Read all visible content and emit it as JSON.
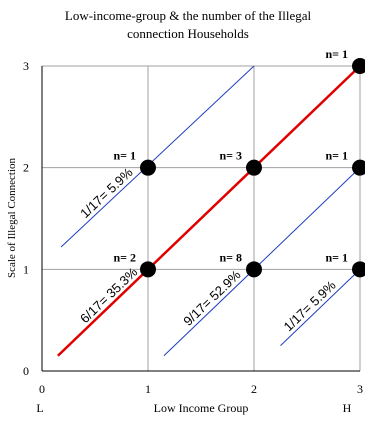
{
  "chart_data": {
    "type": "scatter",
    "title": "Low-income-group & the number of the Illegal connection Households",
    "title_lines": [
      "Low-income-group & the number of the Illegal",
      "connection Households"
    ],
    "xlabel": "Low Income Group",
    "ylabel": "Scale of Illegal Connection",
    "xlim": [
      0,
      3
    ],
    "ylim": [
      0,
      3
    ],
    "x_ticks": [
      "0",
      "1",
      "2",
      "3"
    ],
    "y_ticks": [
      "0",
      "1",
      "2",
      "3"
    ],
    "x_end_labels": {
      "low": "L",
      "high": "H"
    },
    "grid": true,
    "points": [
      {
        "x": 1,
        "y": 1,
        "label": "n= 2"
      },
      {
        "x": 1,
        "y": 2,
        "label": "n= 1"
      },
      {
        "x": 2,
        "y": 1,
        "label": "n= 8"
      },
      {
        "x": 2,
        "y": 2,
        "label": "n= 3"
      },
      {
        "x": 3,
        "y": 1,
        "label": "n= 1"
      },
      {
        "x": 3,
        "y": 2,
        "label": "n= 1"
      },
      {
        "x": 3,
        "y": 3,
        "label": "n= 1"
      }
    ],
    "diagonals": [
      {
        "from": [
          0.18,
          1.22
        ],
        "to": [
          2,
          3
        ],
        "color": "#1f3fbf",
        "label": "1/17= 5.9%"
      },
      {
        "from": [
          0.15,
          0.15
        ],
        "to": [
          3,
          3
        ],
        "color": "#e00000",
        "label": "6/17= 35.3%"
      },
      {
        "from": [
          1.15,
          0.15
        ],
        "to": [
          3,
          2
        ],
        "color": "#1f3fbf",
        "label": "9/17= 52.9%"
      },
      {
        "from": [
          2.25,
          0.25
        ],
        "to": [
          3,
          1
        ],
        "color": "#1f3fbf",
        "label": "1/17= 5.9%"
      }
    ],
    "colors": {
      "point": "#000000",
      "main_line": "#e00000",
      "other_lines": "#1f3fbf",
      "grid": "#a0a0a0"
    }
  }
}
